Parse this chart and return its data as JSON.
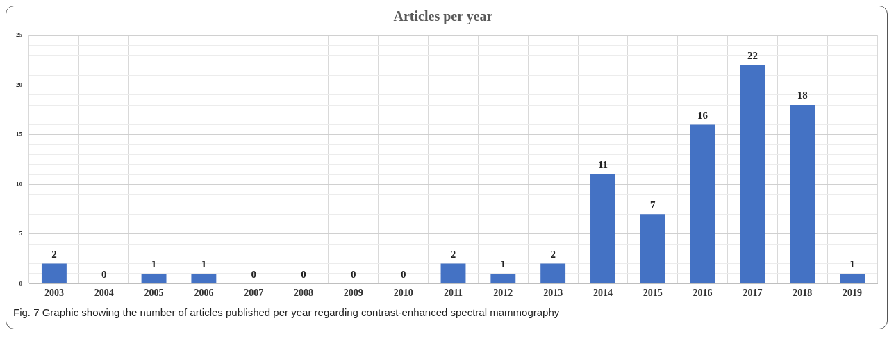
{
  "chart_data": {
    "type": "bar",
    "title": "Articles per year",
    "categories": [
      "2003",
      "2004",
      "2005",
      "2006",
      "2007",
      "2008",
      "2009",
      "2010",
      "2011",
      "2012",
      "2013",
      "2014",
      "2015",
      "2016",
      "2017",
      "2018",
      "2019"
    ],
    "values": [
      2,
      0,
      1,
      1,
      0,
      0,
      0,
      0,
      2,
      1,
      2,
      11,
      7,
      16,
      22,
      18,
      1
    ],
    "color": "#4472c4",
    "ylim": [
      0,
      25
    ],
    "yticks": [
      0,
      {
        "value": 1,
        "label": null
      },
      {
        "value": 2,
        "label": null
      },
      {
        "value": 3,
        "label": null
      },
      {
        "value": 4,
        "label": null
      },
      5,
      {
        "value": 6,
        "label": null
      },
      {
        "value": 7,
        "label": null
      },
      {
        "value": 8,
        "label": null
      },
      {
        "value": 9,
        "label": null
      },
      10,
      {
        "value": 11,
        "label": null
      },
      {
        "value": 12,
        "label": null
      },
      {
        "value": 13,
        "label": null
      },
      {
        "value": 14,
        "label": null
      },
      15,
      {
        "value": 16,
        "label": null
      },
      {
        "value": 17,
        "label": null
      },
      {
        "value": 18,
        "label": null
      },
      {
        "value": 19,
        "label": null
      },
      20,
      {
        "value": 21,
        "label": null
      },
      {
        "value": 22,
        "label": null
      },
      {
        "value": 23,
        "label": null
      },
      {
        "value": 24,
        "label": null
      },
      25
    ],
    "grid": true,
    "data_labels": true,
    "annotations": [
      "Fig. 7 Graphic showing the number of articles published per year regarding contrast-enhanced spectral mammography"
    ]
  }
}
